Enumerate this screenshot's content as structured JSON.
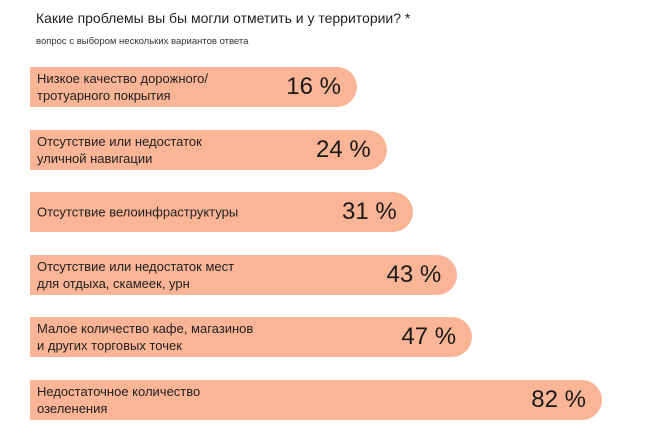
{
  "chart_data": {
    "type": "bar",
    "orientation": "horizontal",
    "title": "Какие проблемы вы бы могли отметить и у территории? *",
    "subtitle": "вопрос с выбором нескольких вариантов ответа",
    "unit": "%",
    "xlim": [
      0,
      100
    ],
    "categories": [
      "Низкое качество дорожного/\nтротуарного покрытия",
      "Отсутствие или недостаток\nуличной навигации",
      "Отсутствие велоинфраструктуры",
      "Отсутствие или недостаток мест\nдля отдыха, скамеек, урн",
      "Малое количество кафе, магазинов\nи других торговых точек",
      "Недостаточное количество\nозеленения"
    ],
    "values": [
      16,
      24,
      31,
      43,
      47,
      82
    ],
    "value_labels": [
      "16 %",
      "24 %",
      "31 %",
      "43 %",
      "47 %",
      "82 %"
    ],
    "bar_color": "#f9b596"
  }
}
